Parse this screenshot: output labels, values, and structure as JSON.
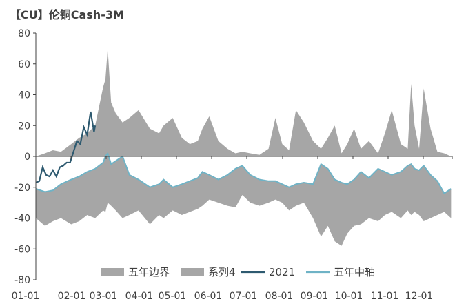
{
  "chart_data": {
    "type": "area",
    "title": "【CU】伦铜Cash-3M",
    "xlabel": "",
    "ylabel": "",
    "ylim": [
      -80,
      80
    ],
    "yticks": [
      80,
      60,
      40,
      20,
      0,
      -20,
      -40,
      -60,
      -80
    ],
    "grid": false,
    "legend_position": "bottom",
    "x_tick_labels": [
      "01-01",
      "02-01",
      "03-01",
      "04-01",
      "05-01",
      "06-01",
      "07-01",
      "08-01",
      "09-01",
      "10-01",
      "11-01",
      "12-01"
    ],
    "x_day": [
      0,
      8,
      15,
      22,
      31,
      38,
      45,
      52,
      59,
      61,
      63,
      66,
      70,
      76,
      82,
      90,
      100,
      108,
      112,
      120,
      128,
      135,
      142,
      146,
      152,
      160,
      168,
      175,
      181,
      188,
      196,
      204,
      210,
      216,
      222,
      228,
      235,
      243,
      250,
      256,
      262,
      268,
      273,
      279,
      285,
      292,
      300,
      306,
      312,
      320,
      326,
      329,
      332,
      336,
      340,
      346,
      352,
      358,
      364
    ],
    "series": [
      {
        "name": "五年边界",
        "role": "upper",
        "values": [
          0,
          2,
          4,
          3,
          8,
          12,
          15,
          20,
          45,
          50,
          70,
          35,
          28,
          22,
          25,
          30,
          18,
          15,
          20,
          25,
          12,
          8,
          10,
          18,
          26,
          10,
          5,
          2,
          3,
          2,
          1,
          5,
          25,
          8,
          4,
          30,
          22,
          10,
          5,
          12,
          20,
          2,
          8,
          18,
          5,
          10,
          2,
          15,
          30,
          8,
          5,
          47,
          20,
          5,
          44,
          18,
          3,
          2,
          0
        ]
      },
      {
        "name": "系列4",
        "role": "lower",
        "values": [
          -40,
          -45,
          -42,
          -40,
          -44,
          -42,
          -38,
          -40,
          -35,
          -36,
          -30,
          -32,
          -35,
          -40,
          -38,
          -35,
          -44,
          -38,
          -40,
          -35,
          -38,
          -36,
          -34,
          -32,
          -28,
          -30,
          -32,
          -33,
          -25,
          -30,
          -32,
          -30,
          -28,
          -30,
          -35,
          -32,
          -30,
          -40,
          -52,
          -45,
          -55,
          -58,
          -50,
          -45,
          -44,
          -40,
          -42,
          -38,
          -36,
          -40,
          -35,
          -38,
          -36,
          -38,
          -42,
          -40,
          -38,
          -36,
          -40
        ]
      },
      {
        "name": "2021",
        "x_day": [
          0,
          3,
          6,
          9,
          12,
          15,
          18,
          21,
          24,
          27,
          30,
          33,
          36,
          39,
          42,
          45,
          48,
          51,
          52
        ],
        "values": [
          -17,
          -16,
          -7,
          -12,
          -13,
          -9,
          -13,
          -7,
          -6,
          -4,
          -4,
          3,
          10,
          8,
          19,
          14,
          29,
          16,
          20
        ]
      },
      {
        "name": "五年中轴",
        "values": [
          -21,
          -23,
          -22,
          -18,
          -15,
          -13,
          -10,
          -8,
          -4,
          0,
          2,
          -5,
          -3,
          0,
          -12,
          -15,
          -20,
          -18,
          -15,
          -20,
          -18,
          -16,
          -14,
          -10,
          -12,
          -15,
          -12,
          -8,
          -6,
          -12,
          -15,
          -16,
          -16,
          -18,
          -20,
          -18,
          -17,
          -18,
          -5,
          -8,
          -15,
          -17,
          -18,
          -15,
          -10,
          -14,
          -8,
          -10,
          -12,
          -10,
          -6,
          -5,
          -8,
          -9,
          -6,
          -12,
          -16,
          -24,
          -21
        ]
      }
    ]
  },
  "colors": {
    "band": "#a6a6a6",
    "series_2021": "#2e5a70",
    "series_mid": "#6fb3c6",
    "axis": "#404040"
  }
}
